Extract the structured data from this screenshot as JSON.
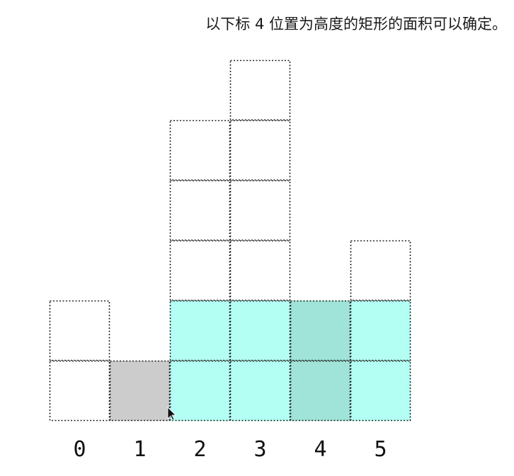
{
  "caption": "以下标 4 位置为高度的矩形的面积可以确定。",
  "chart_data": {
    "type": "bar",
    "categories": [
      "0",
      "1",
      "2",
      "3",
      "4",
      "5"
    ],
    "values": [
      2,
      1,
      5,
      6,
      2,
      3
    ],
    "current_index": 4,
    "current_height": 2,
    "area_range": [
      2,
      5
    ],
    "colors": {
      "area_fill": "#b3fff3",
      "current_fill": "#9fe3d9",
      "min_bar_fill": "#cccccc",
      "cell_border": "#222222"
    }
  }
}
